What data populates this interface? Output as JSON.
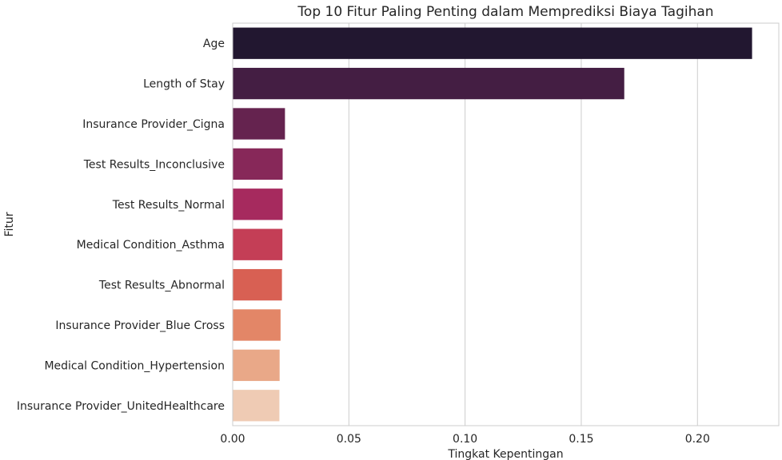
{
  "chart_data": {
    "type": "bar",
    "orientation": "horizontal",
    "title": "Top 10 Fitur Paling Penting dalam Memprediksi Biaya Tagihan",
    "xlabel": "Tingkat Kepentingan",
    "ylabel": "Fitur",
    "xlim": [
      0,
      0.235
    ],
    "xticks": [
      "0.00",
      "0.05",
      "0.10",
      "0.15",
      "0.20"
    ],
    "xtick_values": [
      0,
      0.05,
      0.1,
      0.15,
      0.2
    ],
    "grid": "vertical",
    "categories": [
      "Age",
      "Length of Stay",
      "Insurance Provider_Cigna",
      "Test Results_Inconclusive",
      "Test Results_Normal",
      "Medical Condition_Asthma",
      "Test Results_Abnormal",
      "Insurance Provider_Blue Cross",
      "Medical Condition_Hypertension",
      "Insurance Provider_UnitedHealthcare"
    ],
    "values": [
      0.2235,
      0.1685,
      0.0225,
      0.0215,
      0.0215,
      0.0214,
      0.0212,
      0.0206,
      0.0202,
      0.0201
    ],
    "colors": [
      "#221730",
      "#441e43",
      "#65234f",
      "#872859",
      "#a62a5e",
      "#c43e56",
      "#d86053",
      "#e38667",
      "#e9a888",
      "#efcbb4"
    ]
  }
}
